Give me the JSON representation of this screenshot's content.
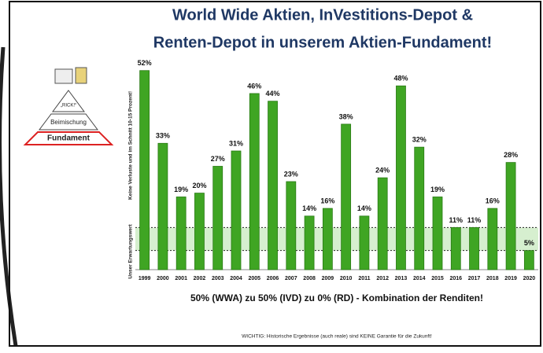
{
  "chart_data": {
    "type": "bar",
    "title": [
      "World Wide Aktien, InVestitions-Depot &",
      "Renten-Depot  in unserem Aktien-Fundament!"
    ],
    "categories": [
      "1999",
      "2000",
      "2001",
      "2002",
      "2003",
      "2004",
      "2005",
      "2006",
      "2007",
      "2008",
      "2009",
      "2010",
      "2011",
      "2012",
      "2013",
      "2014",
      "2015",
      "2016",
      "2017",
      "2018",
      "2019",
      "2020"
    ],
    "values": [
      52,
      33,
      19,
      20,
      27,
      31,
      46,
      44,
      23,
      14,
      16,
      38,
      14,
      24,
      48,
      32,
      19,
      11,
      11,
      16,
      28,
      5
    ],
    "value_labels": [
      "52%",
      "33%",
      "19%",
      "20%",
      "27%",
      "31%",
      "46%",
      "44%",
      "23%",
      "14%",
      "16%",
      "38%",
      "14%",
      "24%",
      "48%",
      "32%",
      "19%",
      "11%",
      "11%",
      "16%",
      "28%",
      "5%"
    ],
    "color": "#3fa523",
    "ylim": [
      0,
      54
    ],
    "target_band": [
      5,
      11
    ],
    "axis_note_upper": "Keine Verluste und im Schnitt 10-15 Prozent!",
    "axis_note_lower": "Unser Erwartungswert",
    "caption": "50% (WWA) zu 50% (IVD) zu 0% (RD) - Kombination der Renditen!",
    "footnote": "WICHTIG: Historische Ergebnisse (auch reale) sind KEINE Garantie für die Zukunft!"
  },
  "pyramid": {
    "top": "„RICK!“",
    "middle": "Beimischung",
    "bottom": "Fundament"
  }
}
